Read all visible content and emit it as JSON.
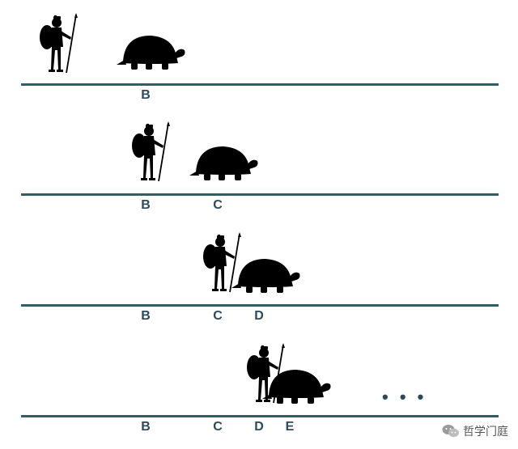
{
  "rows": [
    {
      "labels": [
        {
          "text": "B"
        }
      ]
    },
    {
      "labels": [
        {
          "text": "B"
        },
        {
          "text": "C"
        }
      ]
    },
    {
      "labels": [
        {
          "text": "B"
        },
        {
          "text": "C"
        },
        {
          "text": "D"
        }
      ]
    },
    {
      "labels": [
        {
          "text": "B"
        },
        {
          "text": "C"
        },
        {
          "text": "D"
        },
        {
          "text": "E"
        }
      ]
    }
  ],
  "ellipsis": "• • •",
  "watermark": {
    "icon": "wechat-icon",
    "text": "哲学门庭"
  },
  "colors": {
    "line": "#2f5f63",
    "label": "#2b4a5e",
    "silhouette": "#000000"
  }
}
